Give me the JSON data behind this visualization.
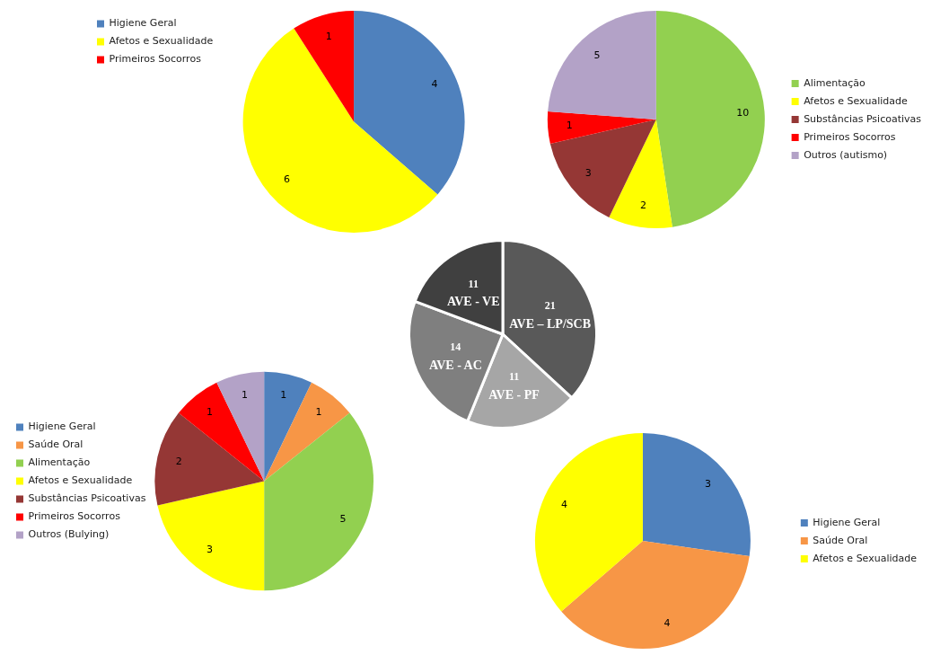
{
  "chart_data": [
    {
      "type": "pie",
      "categories": [
        "Higiene Geral",
        "Afetos e Sexualidade",
        "Primeiros Socorros"
      ],
      "values": [
        4,
        6,
        1
      ],
      "colors": [
        "#4f81bd",
        "#ffff00",
        "#ff0000"
      ],
      "legend": "top left",
      "data_labels": true
    },
    {
      "type": "pie",
      "categories": [
        "Alimentação",
        "Afetos e Sexualidade",
        "Substâncias Psicoativas",
        "Primeiros Socorros",
        "Outros (autismo)"
      ],
      "values": [
        10,
        2,
        3,
        1,
        5
      ],
      "colors": [
        "#92d050",
        "#ffff00",
        "#953735",
        "#ff0000",
        "#b3a2c7"
      ],
      "legend": "right",
      "data_labels": true
    },
    {
      "type": "pie",
      "categories": [
        "AVE – LP/SCB",
        "AVE - PF",
        "AVE - AC",
        "AVE - VE"
      ],
      "values": [
        21,
        11,
        14,
        11
      ],
      "colors": [
        "#595959",
        "#a6a6a6",
        "#7f7f7f",
        "#404040"
      ],
      "legend": false,
      "data_labels": true
    },
    {
      "type": "pie",
      "categories": [
        "Higiene Geral",
        "Saúde Oral",
        "Alimentação",
        "Afetos e Sexualidade",
        "Substâncias Psicoativas",
        "Primeiros Socorros",
        "Outros (Bulying)"
      ],
      "values": [
        1,
        1,
        5,
        3,
        2,
        1,
        1
      ],
      "colors": [
        "#4f81bd",
        "#f79646",
        "#92d050",
        "#ffff00",
        "#953735",
        "#ff0000",
        "#b3a2c7"
      ],
      "legend": "left",
      "data_labels": true
    },
    {
      "type": "pie",
      "categories": [
        "Higiene Geral",
        "Saúde Oral",
        "Afetos e Sexualidade"
      ],
      "values": [
        3,
        4,
        4
      ],
      "colors": [
        "#4f81bd",
        "#f79646",
        "#ffff00"
      ],
      "legend": "right",
      "data_labels": true
    }
  ]
}
